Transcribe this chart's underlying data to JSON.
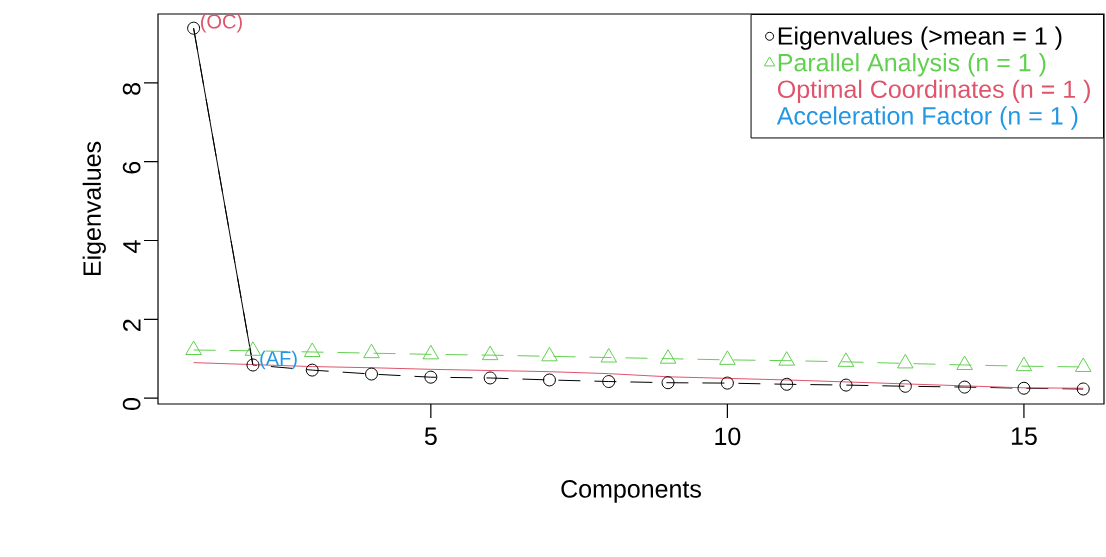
{
  "chart_data": {
    "type": "line",
    "xlabel": "Components",
    "ylabel": "Eigenvalues",
    "x": [
      1,
      2,
      3,
      4,
      5,
      6,
      7,
      8,
      9,
      10,
      11,
      12,
      13,
      14,
      15,
      16
    ],
    "series": [
      {
        "name": "Eigenvalues (>mean = 1 )",
        "color": "#000000",
        "marker": "circle",
        "line_style": "dashed",
        "values": [
          9.39,
          0.84,
          0.71,
          0.61,
          0.53,
          0.51,
          0.46,
          0.42,
          0.39,
          0.38,
          0.35,
          0.33,
          0.3,
          0.28,
          0.25,
          0.23
        ]
      },
      {
        "name": "Parallel Analysis (n = 1 )",
        "color": "#61d04f",
        "marker": "triangle",
        "line_style": "dashed",
        "values": [
          1.22,
          1.2,
          1.17,
          1.14,
          1.11,
          1.09,
          1.06,
          1.03,
          1.0,
          0.97,
          0.95,
          0.92,
          0.88,
          0.84,
          0.81,
          0.79
        ]
      },
      {
        "name": "Optimal Coordinates (n = 1 )",
        "color": "#df536b",
        "marker": "none",
        "line_style": "solid",
        "values": [
          0.9,
          0.85,
          0.8,
          0.77,
          0.73,
          0.7,
          0.67,
          0.62,
          0.54,
          0.5,
          0.46,
          0.41,
          0.36,
          0.31,
          0.26,
          0.25
        ]
      },
      {
        "color": "#000000",
        "marker": "none",
        "line_style": "solid",
        "x": [
          1,
          2
        ],
        "values": [
          9.39,
          0.84
        ]
      }
    ],
    "annotations": [
      {
        "text": "(OC)",
        "x": 1,
        "y": 9.39
      },
      {
        "text": "(AF)",
        "x": 2,
        "y": 0.84
      },
      "Acceleration Factor (n = 1 )"
    ],
    "xlim": [
      0.4,
      16.35
    ],
    "ylim": [
      -0.15,
      9.75
    ],
    "xticks": [
      5,
      10,
      15
    ],
    "yticks": [
      0,
      2,
      4,
      6,
      8
    ],
    "legend": "top right"
  }
}
